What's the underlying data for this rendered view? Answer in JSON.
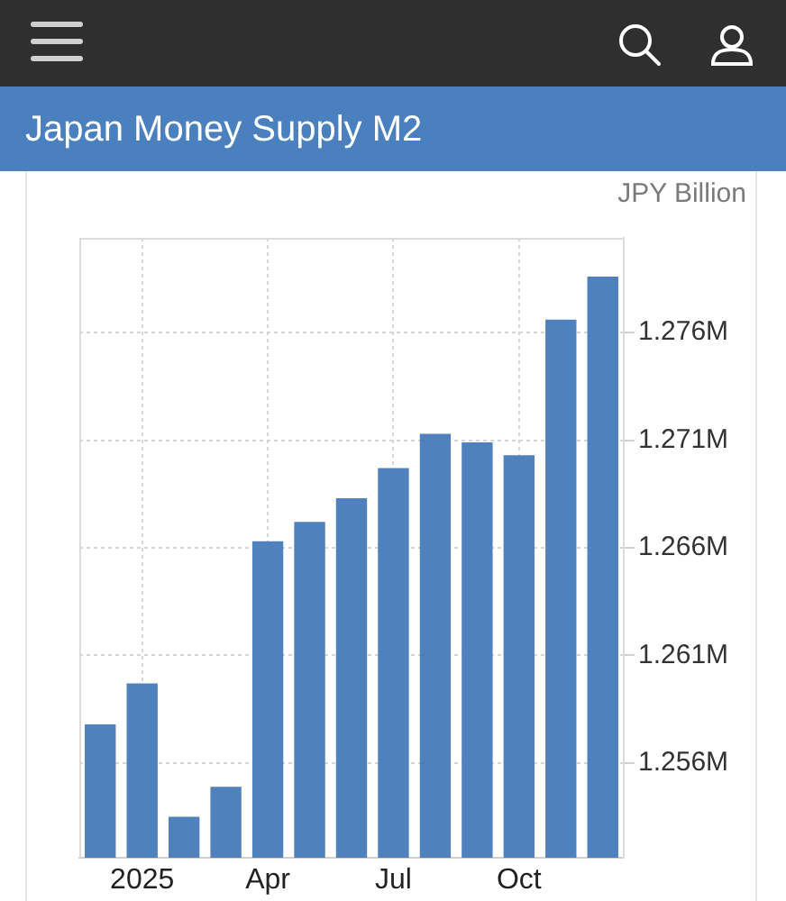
{
  "chart_data": {
    "type": "bar",
    "title": "Japan Money Supply M2",
    "ylabel": "JPY Billion",
    "categories": [
      null,
      "2025",
      null,
      null,
      "Apr",
      null,
      null,
      "Jul",
      null,
      null,
      "Oct",
      null,
      null
    ],
    "values": [
      1257800,
      1259700,
      1253500,
      1254900,
      1266300,
      1267200,
      1268300,
      1269700,
      1271300,
      1270900,
      1270300,
      1276600,
      1278600
    ],
    "color": "#4f81bd",
    "ylim": [
      1251600,
      1280400
    ],
    "yticks": [
      {
        "value": 1256000,
        "label": "1.256M"
      },
      {
        "value": 1261000,
        "label": "1.261M"
      },
      {
        "value": 1266000,
        "label": "1.266M"
      },
      {
        "value": 1271000,
        "label": "1.271M"
      },
      {
        "value": 1276000,
        "label": "1.276M"
      }
    ],
    "grid": true
  }
}
